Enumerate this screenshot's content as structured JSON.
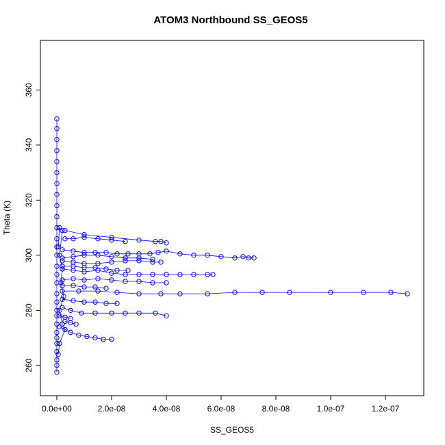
{
  "chart_data": {
    "type": "scatter",
    "title": "ATOM3 Northbound SS_GEOS5",
    "xlabel": "SS_GEOS5",
    "ylabel": "Theta (K)",
    "xlim": [
      -6e-09,
      1.34e-07
    ],
    "ylim": [
      249,
      378
    ],
    "x_ticks": [
      0,
      2e-08,
      4e-08,
      6e-08,
      8e-08,
      1e-07,
      1.2e-07
    ],
    "x_tick_labels": [
      "0.0e+00",
      "2.0e-08",
      "4.0e-08",
      "6.0e-08",
      "8.0e-08",
      "1.0e-07",
      "1.2e-07"
    ],
    "y_ticks": [
      260,
      280,
      300,
      320,
      340,
      360
    ],
    "y_tick_labels": [
      "260",
      "280",
      "300",
      "320",
      "340",
      "360"
    ],
    "grid": false,
    "legend": "none",
    "color": "#0000ff",
    "markers": "open-circle",
    "series": [
      {
        "values": [
          [
            0,
            257.5
          ],
          [
            0,
            260
          ],
          [
            0,
            262
          ],
          [
            0,
            265
          ],
          [
            0,
            268
          ],
          [
            0,
            270
          ],
          [
            0,
            272
          ],
          [
            0,
            275
          ],
          [
            0,
            278
          ],
          [
            0,
            280
          ],
          [
            0,
            283
          ],
          [
            0,
            286
          ],
          [
            0,
            290
          ],
          [
            0,
            293
          ],
          [
            0,
            296
          ],
          [
            0,
            300
          ],
          [
            0,
            303
          ],
          [
            0,
            306
          ],
          [
            0,
            310
          ],
          [
            0,
            314
          ],
          [
            0,
            318
          ],
          [
            0,
            322
          ],
          [
            0,
            326
          ],
          [
            0,
            330
          ],
          [
            0,
            334
          ],
          [
            0,
            338
          ],
          [
            0,
            342
          ],
          [
            0,
            346
          ],
          [
            0,
            349.5
          ]
        ]
      },
      {
        "values": [
          [
            5e-10,
            303
          ],
          [
            1e-09,
            310
          ],
          [
            2e-09,
            309
          ],
          [
            1e-09,
            300
          ],
          [
            2e-09,
            295
          ],
          [
            1.5e-09,
            290
          ],
          [
            2.5e-09,
            285
          ],
          [
            1e-09,
            280
          ],
          [
            2e-09,
            275
          ],
          [
            3e-09,
            273
          ],
          [
            1e-09,
            268
          ],
          [
            5e-10,
            264
          ]
        ]
      },
      {
        "values": [
          [
            3e-09,
            306
          ],
          [
            6e-09,
            306
          ],
          [
            1e-08,
            306.5
          ],
          [
            1.5e-08,
            306
          ],
          [
            2e-08,
            305.5
          ],
          [
            2.5e-08,
            305
          ]
        ]
      },
      {
        "values": [
          [
            2e-09,
            302
          ],
          [
            6e-09,
            301.5
          ],
          [
            1e-08,
            301
          ],
          [
            1.4e-08,
            301
          ],
          [
            1.8e-08,
            301
          ],
          [
            2.2e-08,
            300.5
          ],
          [
            2.6e-08,
            300.5
          ],
          [
            3e-08,
            300.5
          ],
          [
            3.4e-08,
            300.5
          ],
          [
            3.7e-08,
            301
          ],
          [
            4e-08,
            301.5
          ],
          [
            4.5e-08,
            300.5
          ],
          [
            5e-08,
            300
          ],
          [
            5.5e-08,
            300
          ],
          [
            6e-08,
            299.5
          ],
          [
            6.5e-08,
            299
          ],
          [
            6.8e-08,
            299.5
          ],
          [
            7e-08,
            299
          ],
          [
            7.2e-08,
            299
          ]
        ]
      },
      {
        "values": [
          [
            3e-09,
            309
          ],
          [
            1e-08,
            307.5
          ],
          [
            2e-08,
            306.5
          ],
          [
            3e-08,
            305.5
          ],
          [
            3.6e-08,
            305
          ],
          [
            3.8e-08,
            305
          ],
          [
            4e-08,
            304.5
          ]
        ]
      },
      {
        "values": [
          [
            2e-09,
            298
          ],
          [
            6e-09,
            297.5
          ],
          [
            1e-08,
            297
          ],
          [
            1.5e-08,
            297
          ],
          [
            2e-08,
            297.5
          ],
          [
            2.5e-08,
            298
          ],
          [
            3e-08,
            298
          ],
          [
            3.5e-08,
            297.5
          ],
          [
            3.8e-08,
            297.5
          ]
        ]
      },
      {
        "values": [
          [
            2e-09,
            295
          ],
          [
            6e-09,
            294.5
          ],
          [
            1e-08,
            294
          ],
          [
            1.5e-08,
            294.5
          ],
          [
            2e-08,
            293.5
          ],
          [
            2.5e-08,
            293
          ],
          [
            3e-08,
            293
          ],
          [
            3.5e-08,
            293
          ],
          [
            4e-08,
            293
          ],
          [
            4.5e-08,
            293
          ],
          [
            5e-08,
            293
          ],
          [
            5.5e-08,
            293
          ],
          [
            5.7e-08,
            293
          ]
        ]
      },
      {
        "values": [
          [
            2e-09,
            291
          ],
          [
            6e-09,
            291.5
          ],
          [
            1e-08,
            291
          ],
          [
            1.5e-08,
            291.5
          ],
          [
            2e-08,
            291
          ],
          [
            2.5e-08,
            290.5
          ],
          [
            3e-08,
            290.5
          ],
          [
            3.5e-08,
            290
          ],
          [
            4e-08,
            290
          ]
        ]
      },
      {
        "values": [
          [
            2e-09,
            287
          ],
          [
            8e-09,
            287
          ],
          [
            1.5e-08,
            287
          ],
          [
            2.2e-08,
            286.5
          ],
          [
            3e-08,
            286
          ],
          [
            3.8e-08,
            286
          ],
          [
            4.5e-08,
            286
          ],
          [
            5.5e-08,
            286
          ],
          [
            6.5e-08,
            286.5
          ],
          [
            7.5e-08,
            286.5
          ],
          [
            8.5e-08,
            286.5
          ],
          [
            1e-07,
            286.5
          ],
          [
            1.12e-07,
            286.5
          ],
          [
            1.22e-07,
            286.5
          ],
          [
            1.28e-07,
            286
          ]
        ]
      },
      {
        "values": [
          [
            2e-09,
            284
          ],
          [
            6e-09,
            283.5
          ],
          [
            1e-08,
            283
          ],
          [
            1.4e-08,
            283
          ],
          [
            1.8e-08,
            282.5
          ],
          [
            2.2e-08,
            282.5
          ]
        ]
      },
      {
        "values": [
          [
            2e-09,
            281
          ],
          [
            5e-09,
            280
          ],
          [
            9e-09,
            279
          ],
          [
            1.4e-08,
            279
          ],
          [
            2e-08,
            279
          ],
          [
            2.5e-08,
            279
          ],
          [
            3e-08,
            279
          ],
          [
            3.6e-08,
            279
          ],
          [
            4e-08,
            278
          ]
        ]
      },
      {
        "values": [
          [
            3e-09,
            276
          ],
          [
            5e-09,
            275.5
          ],
          [
            7e-09,
            275
          ]
        ]
      },
      {
        "values": [
          [
            1e-09,
            274
          ],
          [
            3e-09,
            273
          ],
          [
            5e-09,
            272
          ],
          [
            8e-09,
            271
          ],
          [
            1.1e-08,
            270.5
          ],
          [
            1.4e-08,
            270
          ],
          [
            1.7e-08,
            269.5
          ],
          [
            2e-08,
            269.5
          ]
        ]
      },
      {
        "values": [
          [
            2e-09,
            299
          ],
          [
            6e-09,
            299.5
          ],
          [
            1e-08,
            300
          ],
          [
            1.5e-08,
            300
          ],
          [
            2e-08,
            299.5
          ],
          [
            2.5e-08,
            299
          ],
          [
            3e-08,
            299
          ],
          [
            3.5e-08,
            298.5
          ]
        ]
      },
      {
        "values": [
          [
            2e-09,
            296
          ],
          [
            6e-09,
            296
          ],
          [
            1e-08,
            295.5
          ],
          [
            1.4e-08,
            295.5
          ],
          [
            1.8e-08,
            295
          ],
          [
            2.2e-08,
            294.5
          ],
          [
            2.6e-08,
            294.5
          ]
        ]
      },
      {
        "values": [
          [
            2e-09,
            289
          ],
          [
            6e-09,
            289
          ],
          [
            1e-08,
            288.5
          ],
          [
            1.4e-08,
            288.5
          ],
          [
            1.8e-08,
            288
          ]
        ]
      },
      {
        "values": [
          [
            1e-09,
            278
          ],
          [
            3e-09,
            277.5
          ],
          [
            5e-09,
            277
          ]
        ]
      }
    ]
  }
}
